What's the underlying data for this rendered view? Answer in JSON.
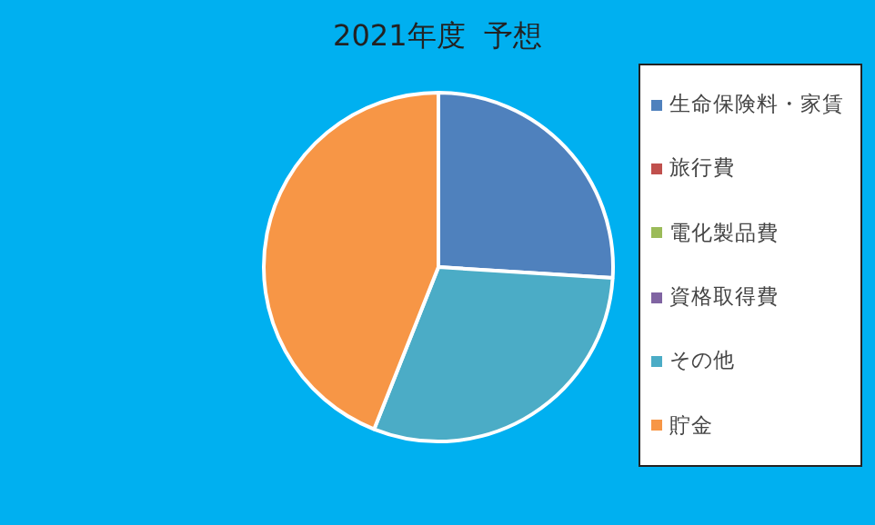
{
  "chart_data": {
    "type": "pie",
    "title": "2021年度  予想",
    "categories": [
      "生命保険料・家賃",
      "旅行費",
      "電化製品費",
      "資格取得費",
      "その他",
      "貯金"
    ],
    "values": [
      26,
      0,
      0,
      0,
      30,
      44
    ],
    "colors": [
      "#4f81bd",
      "#c0504d",
      "#9bbb59",
      "#8064a2",
      "#4bacc6",
      "#f79646"
    ],
    "legend": "right"
  }
}
